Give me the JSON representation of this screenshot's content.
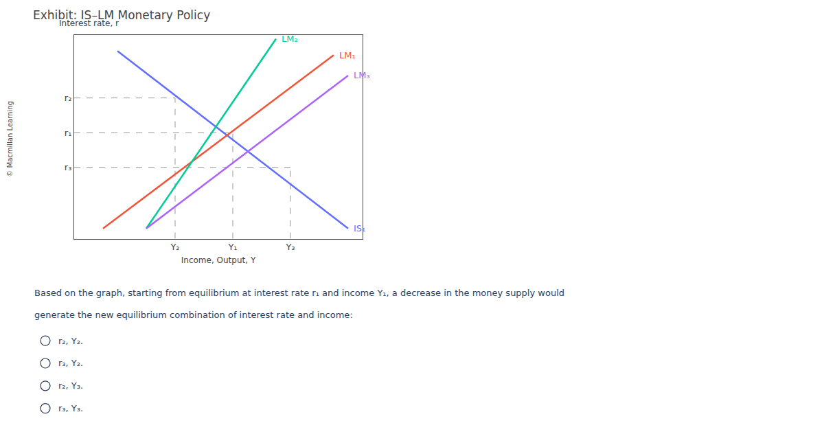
{
  "chart_data": {
    "type": "line",
    "title": "Exhibit: IS–LM Monetary Policy",
    "xlabel": "Income, Output, Y",
    "ylabel": "Interest rate, r",
    "xlim": [
      0,
      10
    ],
    "ylim": [
      0,
      10
    ],
    "xticks": [
      {
        "value": 3.5,
        "label": "Y₂"
      },
      {
        "value": 5.5,
        "label": "Y₁"
      },
      {
        "value": 7.5,
        "label": "Y₃"
      }
    ],
    "yticks": [
      {
        "value": 3.5,
        "label": "r₃"
      },
      {
        "value": 5.2,
        "label": "r₁"
      },
      {
        "value": 6.9,
        "label": "r₂"
      }
    ],
    "grid": false,
    "series": [
      {
        "name": "IS₁",
        "x": [
          1.5,
          9.5
        ],
        "values": [
          9.2,
          0.5
        ]
      },
      {
        "name": "LM₁",
        "x": [
          1.0,
          9.0
        ],
        "values": [
          0.5,
          9.0
        ]
      },
      {
        "name": "LM₂",
        "x": [
          2.5,
          7.0
        ],
        "values": [
          0.5,
          9.8
        ]
      },
      {
        "name": "LM₃",
        "x": [
          2.5,
          9.5
        ],
        "values": [
          0.5,
          8.0
        ]
      }
    ],
    "equilibria": [
      {
        "x": 3.5,
        "y": 6.9
      },
      {
        "x": 5.5,
        "y": 5.2
      },
      {
        "x": 7.5,
        "y": 3.5
      }
    ],
    "watermark": "© Macmillan Learning",
    "question": [
      "Based on the graph, starting from equilibrium at interest rate r₁ and income Y₁, a decrease in the money supply would",
      "generate the new equilibrium combination of interest rate and income:"
    ],
    "choices": [
      "r₂, Y₂.",
      "r₃, Y₂.",
      "r₂, Y₃.",
      "r₃, Y₃."
    ]
  }
}
